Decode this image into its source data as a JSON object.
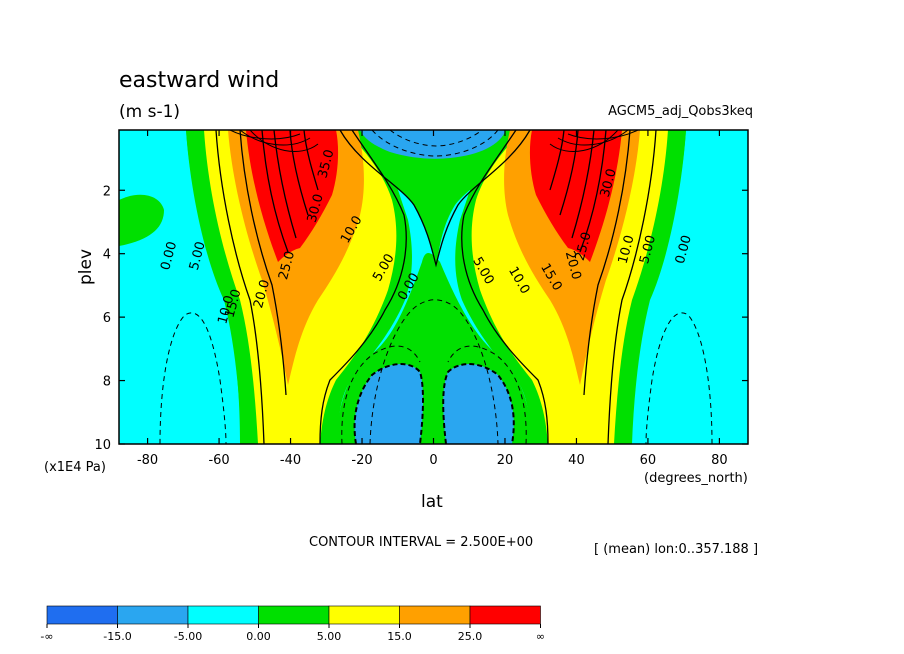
{
  "chart_data": {
    "type": "contour",
    "title": "eastward wind",
    "units": "(m s-1)",
    "experiment": "AGCM5_adj_Qobs3keq",
    "xlabel": "lat",
    "xunit": "(degrees_north)",
    "ylabel": "plev",
    "yunit": "(x1E4 Pa)",
    "x_ticks": [
      "-80",
      "-60",
      "-40",
      "-20",
      "0",
      "20",
      "40",
      "60",
      "80"
    ],
    "x_tick_values": [
      -80,
      -60,
      -40,
      -20,
      0,
      20,
      40,
      60,
      80
    ],
    "y_ticks": [
      "2",
      "4",
      "6",
      "8",
      "10"
    ],
    "y_tick_values": [
      2,
      4,
      6,
      8,
      10
    ],
    "xlim": [
      -88,
      88
    ],
    "ylim": [
      10,
      0.1
    ],
    "contour_interval": "CONTOUR INTERVAL = 2.500E+00",
    "mean_note": "[ (mean) lon:0..357.188 ]",
    "colorbar": {
      "labels": [
        "-∞",
        "-15.0",
        "-5.00",
        "0.00",
        "5.00",
        "15.0",
        "25.0",
        "∞"
      ],
      "colors": [
        "#1f6ef0",
        "#2aa6f0",
        "#00ffff",
        "#00e000",
        "#ffff00",
        "#ffa000",
        "#ff0000"
      ]
    },
    "contour_labels": [
      {
        "text": "0.00",
        "lat": -73,
        "plev": 4.1,
        "rot": -75
      },
      {
        "text": "5.00",
        "lat": -65,
        "plev": 4.1,
        "rot": -75
      },
      {
        "text": "10.0",
        "lat": -57,
        "plev": 5.8,
        "rot": -75
      },
      {
        "text": "15.0",
        "lat": -55,
        "plev": 5.6,
        "rot": -75
      },
      {
        "text": "20.0",
        "lat": -47,
        "plev": 5.3,
        "rot": -75
      },
      {
        "text": "25.0",
        "lat": -40,
        "plev": 4.4,
        "rot": -75
      },
      {
        "text": "30.0",
        "lat": -32,
        "plev": 2.6,
        "rot": -75
      },
      {
        "text": "35.0",
        "lat": -29,
        "plev": 1.2,
        "rot": -75
      },
      {
        "text": "10.0",
        "lat": -22,
        "plev": 3.3,
        "rot": -60
      },
      {
        "text": "5.00",
        "lat": -13,
        "plev": 4.5,
        "rot": -60
      },
      {
        "text": "0.00",
        "lat": -6,
        "plev": 5.1,
        "rot": -60
      },
      {
        "text": "5.00",
        "lat": 13,
        "plev": 4.6,
        "rot": 60
      },
      {
        "text": "10.0",
        "lat": 23,
        "plev": 4.9,
        "rot": 60
      },
      {
        "text": "15.0",
        "lat": 32,
        "plev": 4.8,
        "rot": 60
      },
      {
        "text": "20.0",
        "lat": 38,
        "plev": 4.4,
        "rot": 75
      },
      {
        "text": "25.0",
        "lat": 43,
        "plev": 3.8,
        "rot": -75
      },
      {
        "text": "30.0",
        "lat": 50,
        "plev": 1.8,
        "rot": -75
      },
      {
        "text": "10.0",
        "lat": 55,
        "plev": 3.9,
        "rot": -75
      },
      {
        "text": "5.00",
        "lat": 61,
        "plev": 3.9,
        "rot": -75
      },
      {
        "text": "0.00",
        "lat": 71,
        "plev": 3.9,
        "rot": -75
      }
    ]
  }
}
